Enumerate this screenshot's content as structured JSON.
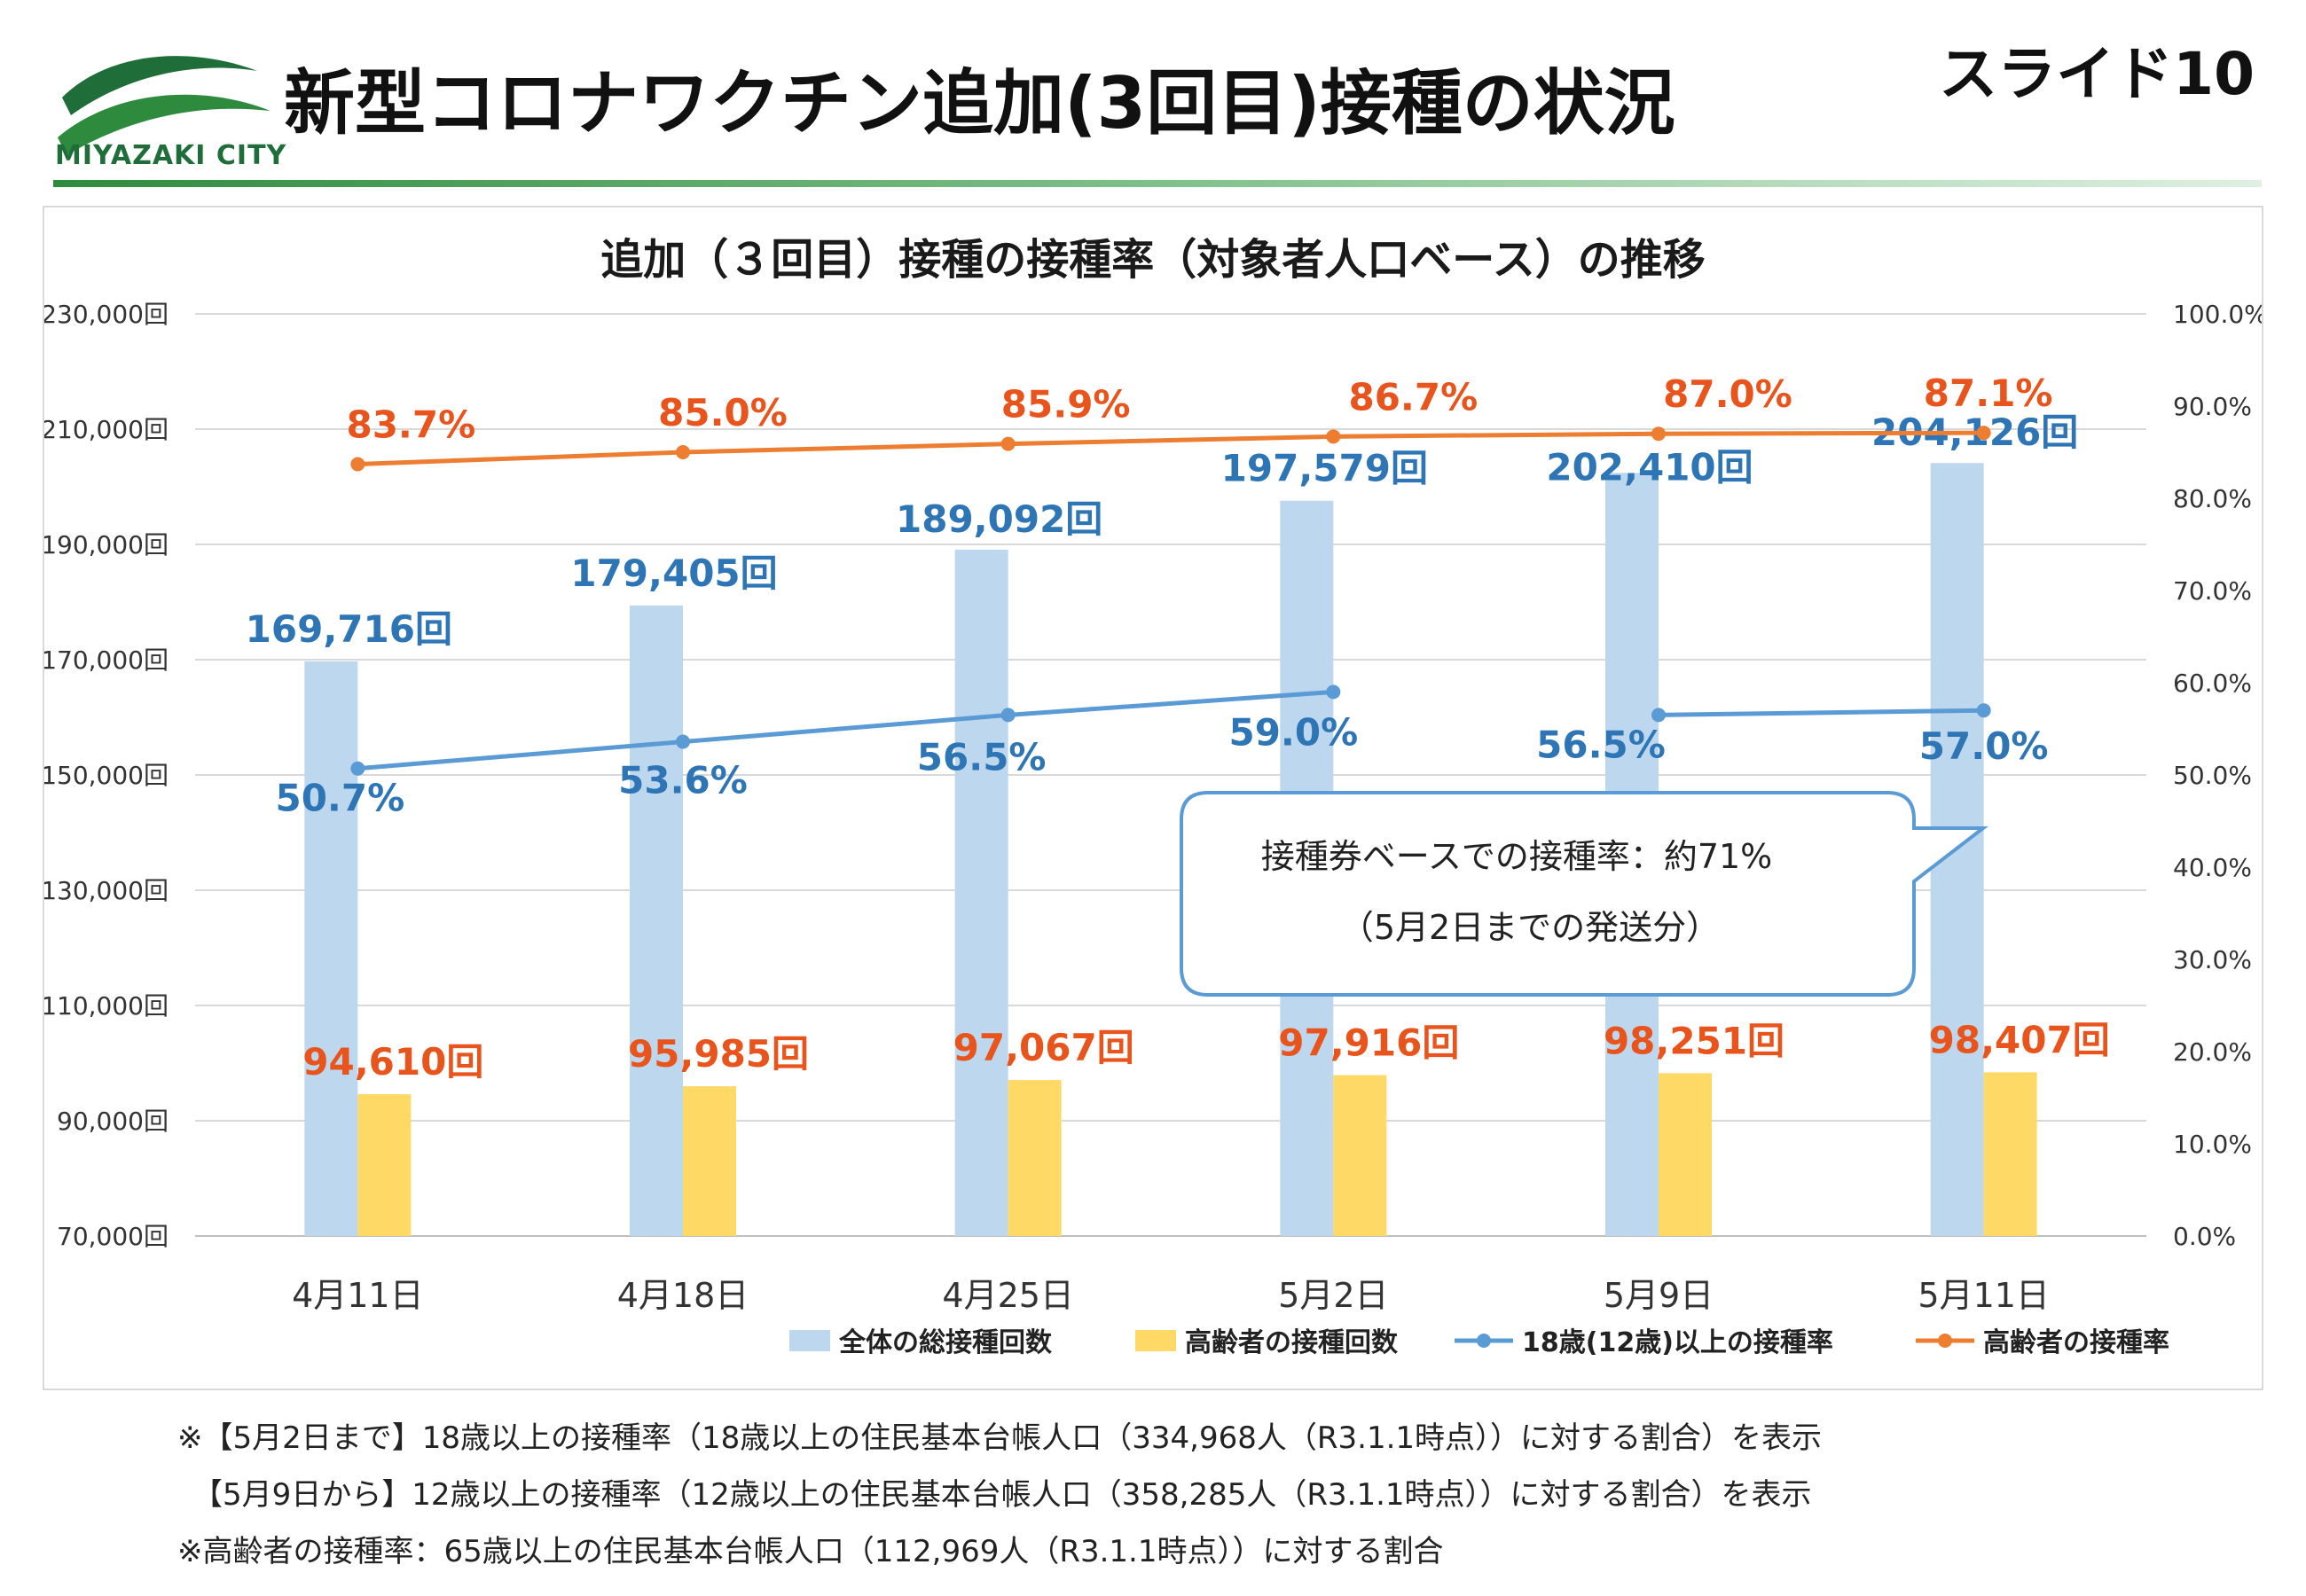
{
  "header": {
    "logo_text": "MIYAZAKI CITY",
    "title": "新型コロナワクチン追加(3回目)接種の状況",
    "slide_label": "スライド10"
  },
  "colors": {
    "bar_total": "#bdd7ee",
    "bar_elderly": "#ffd966",
    "line_adult": "#5b9bd5",
    "line_elderly": "#ed7d31",
    "label_adult": "#2e75b6",
    "label_elderly": "#e8541b",
    "brand_green": "#1f6e3a"
  },
  "chart_data": {
    "type": "bar",
    "title": "追加（３回目）接種の接種率（対象者人口ベース）の推移",
    "categories": [
      "4月11日",
      "4月18日",
      "4月25日",
      "5月2日",
      "5月9日",
      "5月11日"
    ],
    "left_axis": {
      "range": [
        70000,
        230000
      ],
      "ticks": [
        "230,000回",
        "210,000回",
        "190,000回",
        "170,000回",
        "150,000回",
        "130,000回",
        "110,000回",
        "90,000回",
        "70,000回"
      ]
    },
    "right_axis": {
      "range": [
        0,
        100
      ],
      "ticks": [
        "100.0%",
        "90.0%",
        "80.0%",
        "70.0%",
        "60.0%",
        "50.0%",
        "40.0%",
        "30.0%",
        "20.0%",
        "10.0%",
        "0.0%"
      ]
    },
    "series": [
      {
        "name": "全体の総接種回数",
        "kind": "bar",
        "axis": "left",
        "values": [
          169716,
          179405,
          189092,
          197579,
          202410,
          204126
        ],
        "labels": [
          "169,716回",
          "179,405回",
          "189,092回",
          "197,579回",
          "202,410回",
          "204,126回"
        ]
      },
      {
        "name": "高齢者の接種回数",
        "kind": "bar",
        "axis": "left",
        "values": [
          94610,
          95985,
          97067,
          97916,
          98251,
          98407
        ],
        "labels": [
          "94,610回",
          "95,985回",
          "97,067回",
          "97,916回",
          "98,251回",
          "98,407回"
        ]
      },
      {
        "name": "18歳(12歳)以上の接種率",
        "kind": "line",
        "axis": "right",
        "values": [
          50.7,
          53.6,
          56.5,
          59.0,
          56.5,
          57.0
        ],
        "labels": [
          "50.7%",
          "53.6%",
          "56.5%",
          "59.0%",
          "56.5%",
          "57.0%"
        ],
        "segments": [
          [
            0,
            3
          ],
          [
            4,
            5
          ]
        ]
      },
      {
        "name": "高齢者の接種率",
        "kind": "line",
        "axis": "right",
        "values": [
          83.7,
          85.0,
          85.9,
          86.7,
          87.0,
          87.1
        ],
        "labels": [
          "83.7%",
          "85.0%",
          "85.9%",
          "86.7%",
          "87.0%",
          "87.1%"
        ]
      }
    ],
    "callout": {
      "line1": "接種券ベースでの接種率：約71%",
      "line2": "（5月2日までの発送分）"
    },
    "legend_position": "bottom-right"
  },
  "footnotes": [
    "※【5月2日まで】18歳以上の接種率（18歳以上の住民基本台帳人口（334,968人（R3.1.1時点））に対する割合）を表示",
    "　【5月9日から】12歳以上の接種率（12歳以上の住民基本台帳人口（358,285人（R3.1.1時点））に対する割合）を表示",
    "※高齢者の接種率：65歳以上の住民基本台帳人口（112,969人（R3.1.1時点））に対する割合"
  ]
}
